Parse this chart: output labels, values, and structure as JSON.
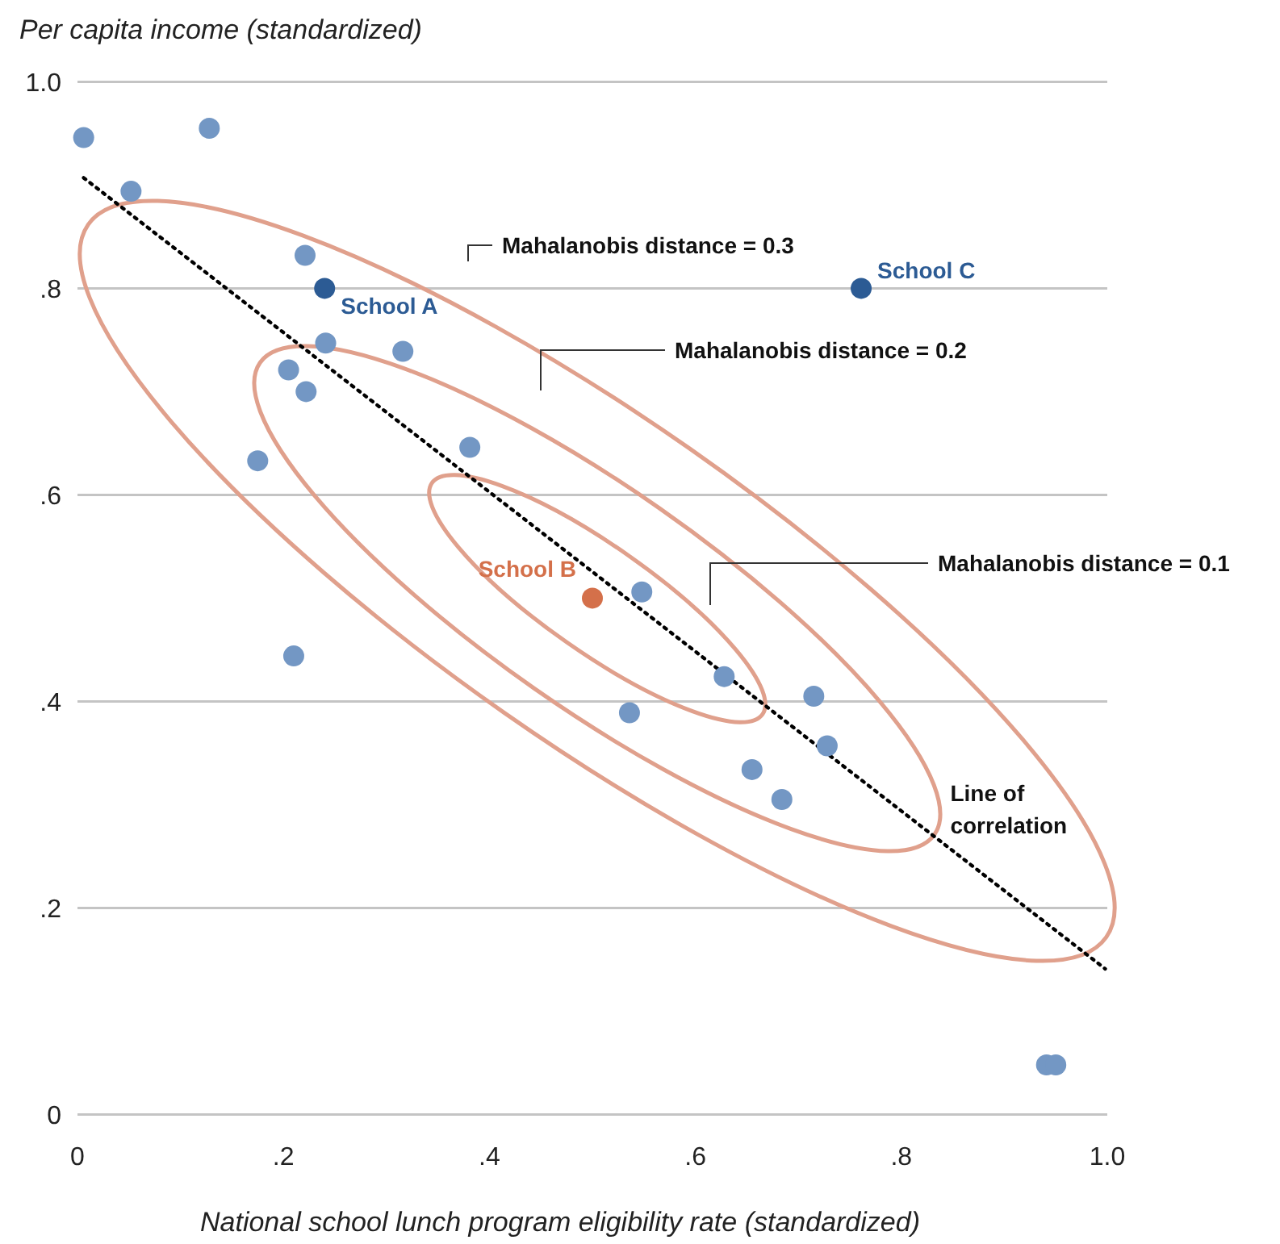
{
  "chart_data": {
    "type": "scatter",
    "xlabel": "National school lunch program eligibility rate (standardized)",
    "ylabel": "Per capita income (standardized)",
    "xlim": [
      0,
      1
    ],
    "ylim": [
      0,
      1
    ],
    "xticks": [
      0,
      {
        "value": 0.2,
        "label": ".2"
      },
      {
        "value": 0.4,
        "label": ".4"
      },
      {
        "value": 0.6,
        "label": ".6"
      },
      {
        "value": 0.8,
        "label": ".8"
      },
      {
        "value": 1,
        "label": "1.0"
      }
    ],
    "yticks": [
      0,
      {
        "value": 0.2,
        "label": ".2"
      },
      {
        "value": 0.4,
        "label": ".4"
      },
      {
        "value": 0.6,
        "label": ".6"
      },
      {
        "value": 0.8,
        "label": ".8"
      },
      {
        "value": 1,
        "label": "1.0"
      }
    ],
    "grid": "y",
    "marker": "circle",
    "series": [
      {
        "color": "#7397c4",
        "x": [
          0.006,
          0.052,
          0.128,
          0.221,
          0.241,
          0.316,
          0.205,
          0.222,
          0.381,
          0.175,
          0.21,
          0.548,
          0.628,
          0.536,
          0.715,
          0.728,
          0.655,
          0.684,
          0.941,
          0.95
        ],
        "values": [
          0.946,
          0.894,
          0.955,
          0.832,
          0.747,
          0.739,
          0.721,
          0.7,
          0.646,
          0.633,
          0.444,
          0.506,
          0.424,
          0.389,
          0.405,
          0.357,
          0.334,
          0.305,
          0.048,
          0.048
        ]
      },
      {
        "name": "School A",
        "color": "#2c5b94",
        "x": [
          0.24
        ],
        "values": [
          0.8
        ]
      },
      {
        "name": "School B",
        "color": "#d4704a",
        "x": [
          0.5
        ],
        "values": [
          0.5
        ]
      },
      {
        "name": "School C",
        "color": "#2c5b94",
        "x": [
          0.761
        ],
        "values": [
          0.8
        ]
      },
      {
        "type": "line",
        "name": "Line of correlation",
        "color": "#000000",
        "line_style": "dotted",
        "marker": "none",
        "x": [
          0.006,
          0.998
        ],
        "values": [
          0.907,
          0.141
        ]
      }
    ],
    "annotations": [
      "Mahalanobis distance = 0.3",
      "Mahalanobis distance = 0.2",
      "Mahalanobis distance = 0.1"
    ]
  }
}
